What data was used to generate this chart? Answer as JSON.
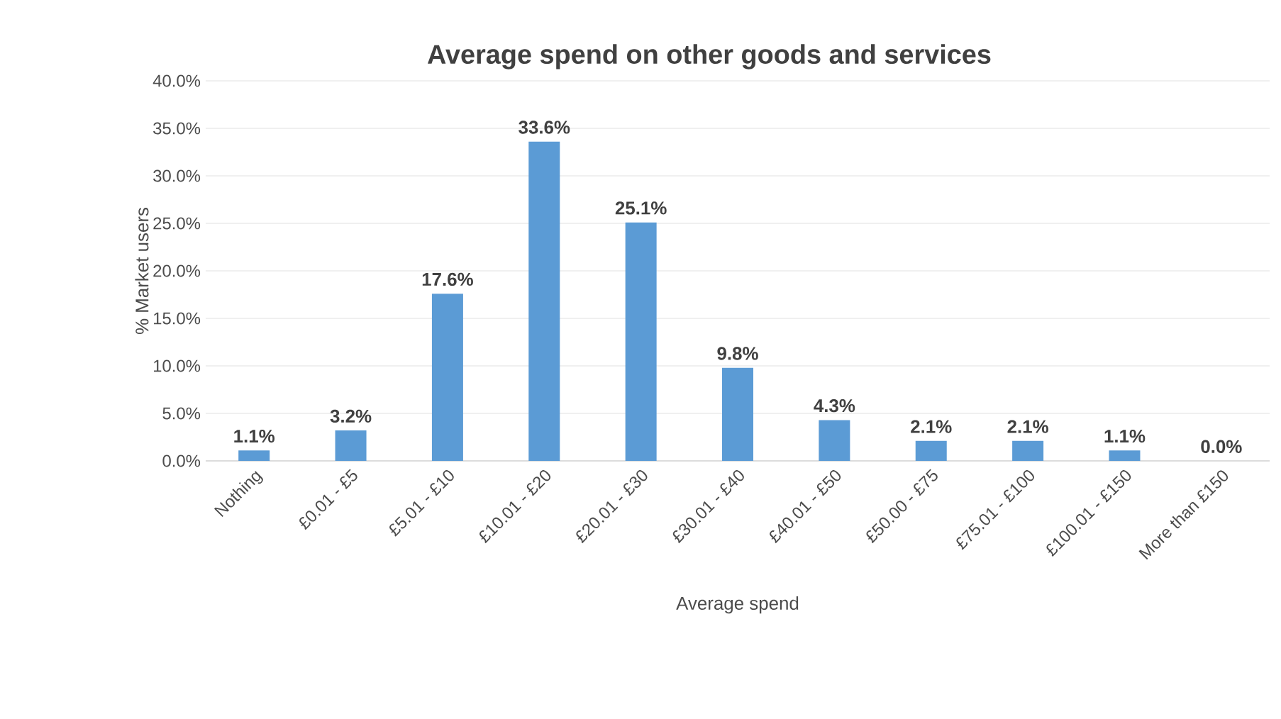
{
  "chart_data": {
    "type": "bar",
    "title": "Average spend on other goods and services",
    "xlabel": "Average spend",
    "ylabel": "% Market users",
    "categories": [
      "Nothing",
      "£0.01 - £5",
      "£5.01 - £10",
      "£10.01 - £20",
      "£20.01 - £30",
      "£30.01 - £40",
      "£40.01 - £50",
      "£50.00 - £75",
      "£75.01 - £100",
      "£100.01 - £150",
      "More than £150"
    ],
    "values": [
      1.1,
      3.2,
      17.6,
      33.6,
      25.1,
      9.8,
      4.3,
      2.1,
      2.1,
      1.1,
      0.0
    ],
    "value_labels": [
      "1.1%",
      "3.2%",
      "17.6%",
      "33.6%",
      "25.1%",
      "9.8%",
      "4.3%",
      "2.1%",
      "2.1%",
      "1.1%",
      "0.0%"
    ],
    "color": "#5b9bd5",
    "ylim": [
      0,
      40
    ],
    "yticks": [
      {
        "value": 0,
        "label": "0.0%"
      },
      {
        "value": 5,
        "label": "5.0%"
      },
      {
        "value": 10,
        "label": "10.0%"
      },
      {
        "value": 15,
        "label": "15.0%"
      },
      {
        "value": 20,
        "label": "20.0%"
      },
      {
        "value": 25,
        "label": "25.0%"
      },
      {
        "value": 30,
        "label": "30.0%"
      },
      {
        "value": 35,
        "label": "35.0%"
      },
      {
        "value": 40,
        "label": "40.0%"
      }
    ],
    "grid": "y"
  }
}
